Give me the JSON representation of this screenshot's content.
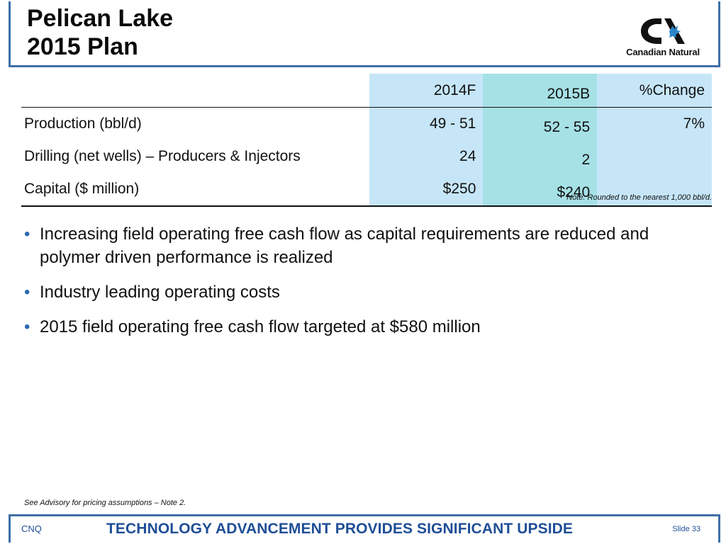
{
  "slide": {
    "title_line1": "Pelican Lake",
    "title_line2": "2015 Plan",
    "logo_text": "Canadian Natural"
  },
  "table": {
    "headers": [
      "",
      "2014F",
      "2015B",
      "%Change"
    ],
    "rows": [
      [
        "Production (bbl/d)",
        "49 - 51",
        "52 - 55",
        "7%"
      ],
      [
        "Drilling (net wells) – Producers & Injectors",
        "24",
        "2",
        ""
      ],
      [
        "Capital ($ million)",
        "$250",
        "$240",
        ""
      ]
    ],
    "column_colors": {
      "col_2014": "#c6e6f8",
      "col_2015": "#a6e1e6",
      "col_pct": "#c6e6f8"
    }
  },
  "note": "Note: Rounded to the nearest 1,000 bbl/d.",
  "bullets": [
    "Increasing field operating free cash flow as capital requirements are reduced and polymer driven performance is realized",
    "Industry leading operating costs",
    "2015 field operating free cash flow targeted at $580 million"
  ],
  "advisory": "See Advisory for pricing assumptions – Note 2.",
  "footer": {
    "left": "CNQ",
    "center": "TECHNOLOGY ADVANCEMENT PROVIDES SIGNIFICANT UPSIDE",
    "right": "Slide 33"
  },
  "colors": {
    "frame": "#3f6fa6",
    "footer_text": "#1f4e96",
    "logo_accent": "#2a86c9"
  },
  "icons": {
    "logo": "canadian-natural-logo-icon",
    "bullet": "bullet-dot-icon"
  }
}
